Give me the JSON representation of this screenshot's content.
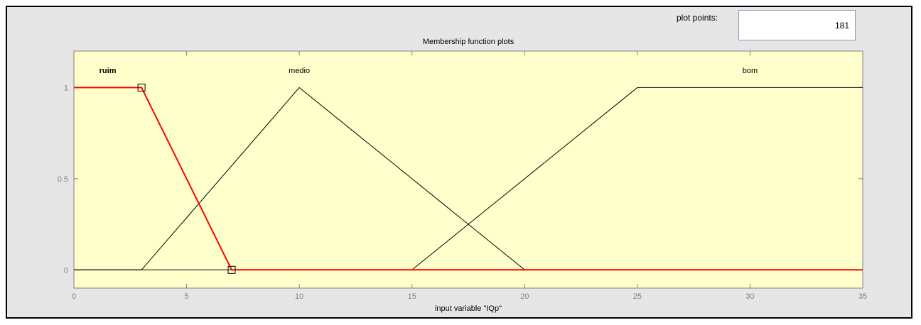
{
  "plot_points": {
    "label": "plot points:",
    "value": "181"
  },
  "chart_data": {
    "type": "line",
    "title": "Membership function plots",
    "xlabel": "input variable \"IQp\"",
    "ylabel": "",
    "xlim": [
      0,
      35
    ],
    "ylim": [
      -0.1,
      1.2
    ],
    "xticks": [
      0,
      5,
      10,
      15,
      20,
      25,
      30,
      35
    ],
    "yticks": [
      0,
      0.5,
      1
    ],
    "ytick_labels": [
      "0",
      "0.5",
      "1"
    ],
    "grid": false,
    "series": [
      {
        "name": "ruim",
        "color": "#ff0000",
        "selected": true,
        "label_x": 1.5,
        "x": [
          0,
          3,
          7,
          35
        ],
        "y": [
          1,
          1,
          0,
          0
        ],
        "handles": [
          [
            3,
            1
          ],
          [
            7,
            0
          ]
        ]
      },
      {
        "name": "medio",
        "color": "#000000",
        "selected": false,
        "label_x": 10,
        "x": [
          0,
          3,
          10,
          20,
          35
        ],
        "y": [
          0,
          0,
          1,
          0,
          0
        ]
      },
      {
        "name": "bom",
        "color": "#000000",
        "selected": false,
        "label_x": 30,
        "x": [
          0,
          15,
          25,
          35
        ],
        "y": [
          0,
          0,
          1,
          1
        ]
      }
    ]
  },
  "colors": {
    "plot_background": "#ffffcc",
    "frame_background": "#e6e6e6",
    "selected": "#ff0000",
    "axis": "#808080"
  }
}
